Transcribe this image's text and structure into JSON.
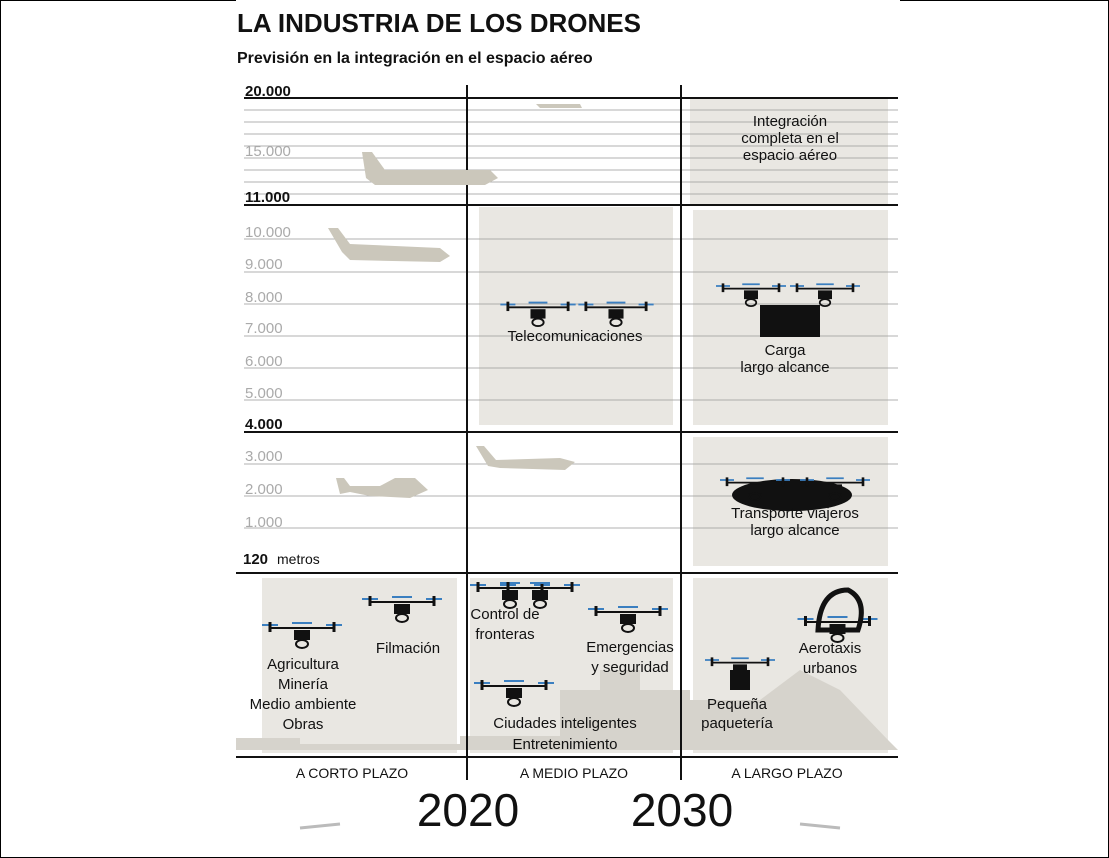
{
  "header": {
    "title": "LA INDUSTRIA DE LOS DRONES",
    "subtitle": "Previsión en la integración en el espacio aéreo"
  },
  "altitudes": [
    "20.000",
    "15.000",
    "11.000",
    "10.000",
    "9.000",
    "8.000",
    "7.000",
    "6.000",
    "5.000",
    "4.000",
    "3.000",
    "2.000",
    "1.000"
  ],
  "ground": {
    "value": "120",
    "unit": "metros"
  },
  "zones": [
    {
      "lines": [
        "Integración",
        "completa en el",
        "espacio aéreo"
      ]
    },
    {
      "lines": [
        "Telecomunicaciones"
      ]
    },
    {
      "lines": [
        "Carga",
        "largo alcance"
      ]
    },
    {
      "lines": [
        "Transporte viajeros",
        "largo alcance"
      ]
    },
    {
      "lines": [
        "Agricultura",
        "Minería",
        "Medio ambiente",
        "Obras"
      ]
    },
    {
      "lines": [
        "Filmación"
      ]
    },
    {
      "lines": [
        "Control de",
        "fronteras"
      ]
    },
    {
      "lines": [
        "Emergencias",
        "y seguridad"
      ]
    },
    {
      "lines": [
        "Ciudades inteligentes",
        "Entretenimiento"
      ]
    },
    {
      "lines": [
        "Pequeña",
        "paquetería"
      ]
    },
    {
      "lines": [
        "Aerotaxis",
        "urbanos"
      ]
    }
  ],
  "periods": [
    "A CORTO PLAZO",
    "A MEDIO PLAZO",
    "A LARGO PLAZO"
  ],
  "years": [
    "2020",
    "2030"
  ]
}
